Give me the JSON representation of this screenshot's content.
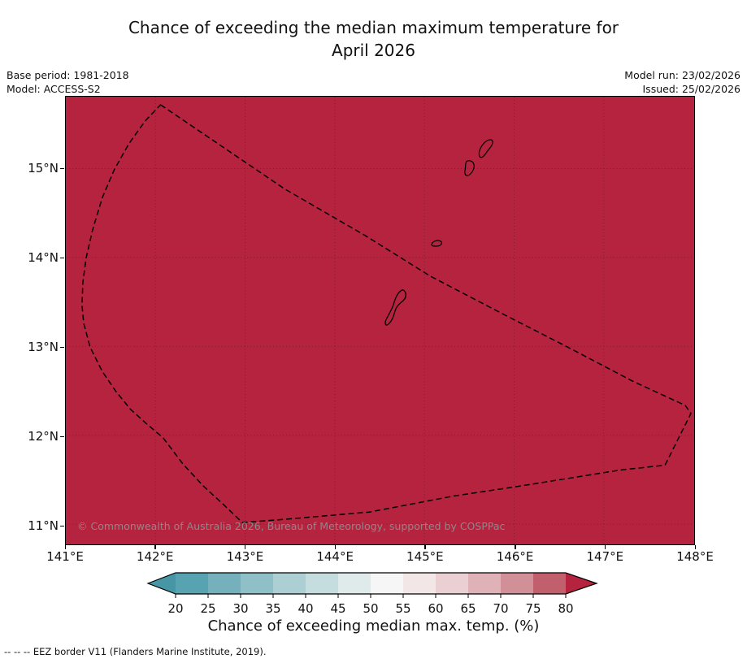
{
  "title": "Chance of exceeding the median maximum temperature for\nApril 2026",
  "header": {
    "base_period": "Base period: 1981-2018",
    "model": "Model: ACCESS-S2",
    "model_run": "Model run: 23/02/2026",
    "issued": "Issued: 25/02/2026"
  },
  "map": {
    "fill_color": "#b5233f",
    "watermark": "© Commonwealth of Australia 2026, Bureau of Meteorology, supported by COSPPac",
    "x_ticks": [
      "141°E",
      "142°E",
      "143°E",
      "144°E",
      "145°E",
      "146°E",
      "147°E",
      "148°E"
    ],
    "y_ticks": [
      "15°N",
      "14°N",
      "13°N",
      "12°N",
      "11°N"
    ]
  },
  "colorbar": {
    "label": "Chance of exceeding median max. temp. (%)",
    "ticks": [
      "20",
      "25",
      "30",
      "35",
      "40",
      "45",
      "50",
      "55",
      "60",
      "65",
      "70",
      "75",
      "80"
    ],
    "under_color": "#4796a6",
    "over_color": "#b5233f",
    "cell_colors": [
      "#58a3b1",
      "#74b1bc",
      "#90c0c7",
      "#abcfd3",
      "#c6dde0",
      "#dfebeb",
      "#f5f6f5",
      "#f3e6e6",
      "#ead0d2",
      "#deb2b7",
      "#d18f98",
      "#c25f6d"
    ]
  },
  "footer": {
    "eez_note": "--  --  -- EEZ border V11 (Flanders Marine Institute, 2019)."
  },
  "chart_data": {
    "type": "heatmap",
    "title": "Chance of exceeding the median maximum temperature for April 2026",
    "x_axis": {
      "tick_labels": [
        "141°E",
        "142°E",
        "143°E",
        "144°E",
        "145°E",
        "146°E",
        "147°E",
        "148°E"
      ],
      "range_deg_east": [
        141,
        148
      ]
    },
    "y_axis": {
      "tick_labels": [
        "15°N",
        "14°N",
        "13°N",
        "12°N",
        "11°N"
      ],
      "range_deg_north": [
        10.8,
        15.8
      ]
    },
    "colorbar": {
      "label": "Chance of exceeding median max. temp. (%)",
      "ticks": [
        20,
        25,
        30,
        35,
        40,
        45,
        50,
        55,
        60,
        65,
        70,
        75,
        80
      ],
      "units": "%",
      "extend": "both",
      "position": "bottom"
    },
    "values_summary": "Entire mapped domain is shaded in the highest class (> 80%): the chance of exceeding the median maximum temperature is above 80% everywhere shown.",
    "overlays": [
      "Dashed EEZ border polygon",
      "Small island coastline outlines within the domain"
    ],
    "grid": "dotted graticule at 1-degree intervals",
    "base_period": "1981-2018",
    "model": "ACCESS-S2",
    "model_run": "23/02/2026",
    "issued": "25/02/2026"
  }
}
